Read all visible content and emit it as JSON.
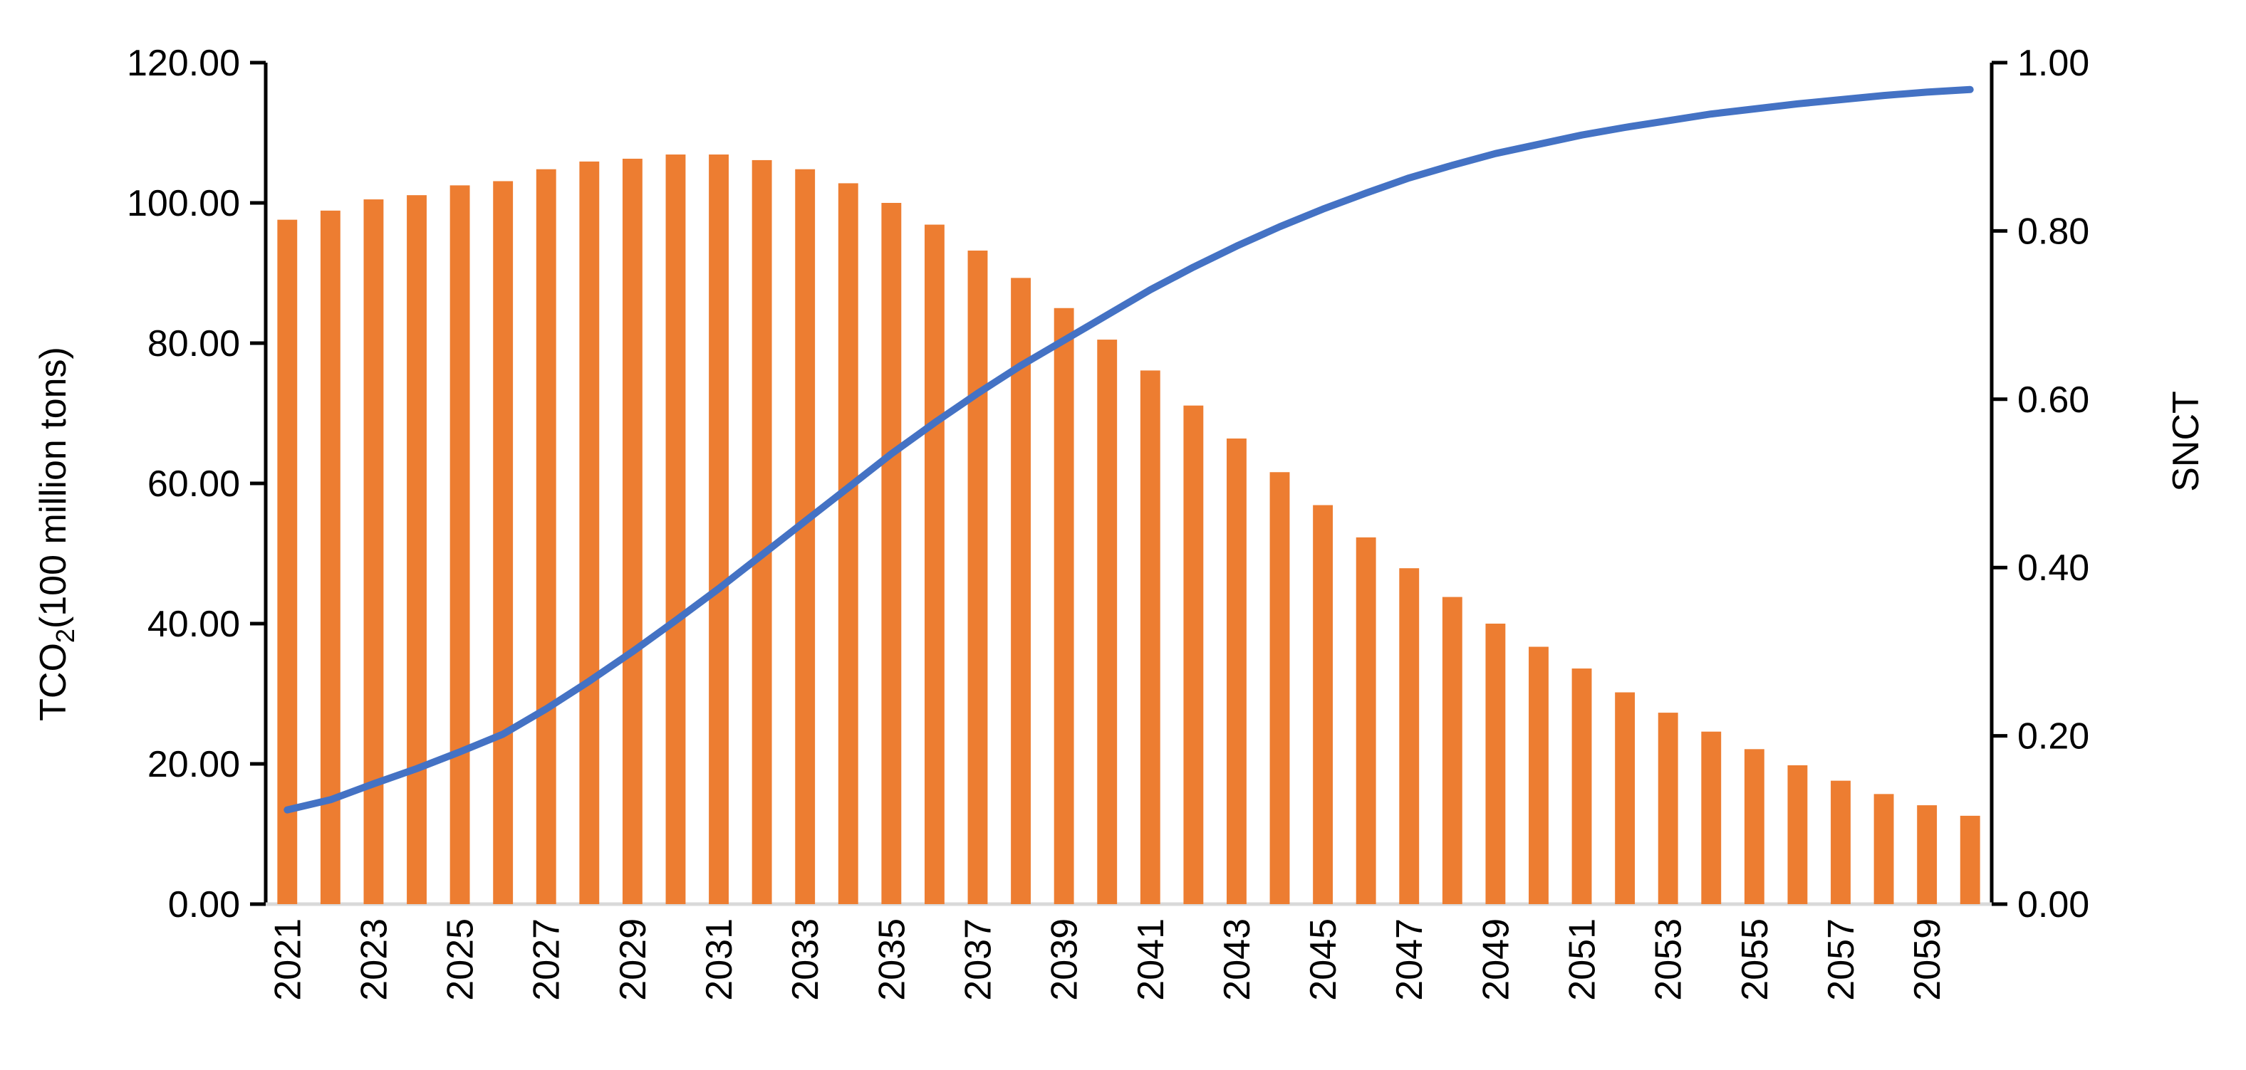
{
  "chart_data": {
    "type": "bar",
    "title": "",
    "xlabel": "",
    "ylabel": "TCO",
    "ylabel_sub": "2",
    "ylabel_suffix": "(100 million tons)",
    "y2label": "SNCT",
    "ylim": [
      0,
      120
    ],
    "y2lim": [
      0,
      1
    ],
    "yticks": [
      "0.00",
      "20.00",
      "40.00",
      "60.00",
      "80.00",
      "100.00",
      "120.00"
    ],
    "y2ticks": [
      "0.00",
      "0.20",
      "0.40",
      "0.60",
      "0.80",
      "1.00"
    ],
    "categories": [
      "2021",
      "2022",
      "2023",
      "2024",
      "2025",
      "2026",
      "2027",
      "2028",
      "2029",
      "2030",
      "2031",
      "2032",
      "2033",
      "2034",
      "2035",
      "2036",
      "2037",
      "2038",
      "2039",
      "2040",
      "2041",
      "2042",
      "2043",
      "2044",
      "2045",
      "2046",
      "2047",
      "2048",
      "2049",
      "2050",
      "2051",
      "2052",
      "2053",
      "2054",
      "2055",
      "2056",
      "2057",
      "2058",
      "2059",
      "2060"
    ],
    "xtick_labels": [
      "2021",
      "2023",
      "2025",
      "2027",
      "2029",
      "2031",
      "2033",
      "2035",
      "2037",
      "2039",
      "2041",
      "2043",
      "2045",
      "2047",
      "2049",
      "2051",
      "2053",
      "2055",
      "2057",
      "2059"
    ],
    "series": [
      {
        "name": "TCO2",
        "type": "bar",
        "axis": "left",
        "color": "#ed7d31",
        "values": [
          97.6,
          98.9,
          100.5,
          101.1,
          102.5,
          103.1,
          104.8,
          105.9,
          106.3,
          106.9,
          106.9,
          106.1,
          104.8,
          102.8,
          100.0,
          96.9,
          93.2,
          89.3,
          85.0,
          80.5,
          76.1,
          71.1,
          66.4,
          61.6,
          56.9,
          52.3,
          47.9,
          43.8,
          40.0,
          36.7,
          33.6,
          30.2,
          27.3,
          24.6,
          22.1,
          19.8,
          17.6,
          15.7,
          14.1,
          12.6
        ]
      },
      {
        "name": "SNCT",
        "type": "line",
        "axis": "right",
        "color": "#4472c4",
        "values": [
          0.112,
          0.124,
          0.143,
          0.161,
          0.181,
          0.202,
          0.232,
          0.265,
          0.3,
          0.337,
          0.375,
          0.415,
          0.455,
          0.495,
          0.535,
          0.572,
          0.607,
          0.64,
          0.67,
          0.7,
          0.73,
          0.757,
          0.782,
          0.805,
          0.826,
          0.845,
          0.863,
          0.878,
          0.892,
          0.903,
          0.914,
          0.923,
          0.931,
          0.939,
          0.945,
          0.951,
          0.956,
          0.961,
          0.965,
          0.968
        ]
      }
    ]
  }
}
